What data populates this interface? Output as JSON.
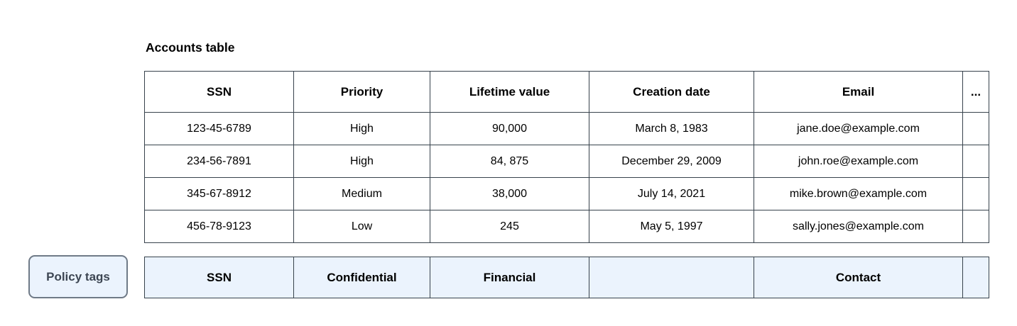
{
  "accounts_table": {
    "title": "Accounts table",
    "headers": [
      "SSN",
      "Priority",
      "Lifetime value",
      "Creation date",
      "Email",
      "..."
    ],
    "rows": [
      [
        "123-45-6789",
        "High",
        "90,000",
        "March 8, 1983",
        "jane.doe@example.com",
        ""
      ],
      [
        "234-56-7891",
        "High",
        "84, 875",
        "December 29, 2009",
        "john.roe@example.com",
        ""
      ],
      [
        "345-67-8912",
        "Medium",
        "38,000",
        "July 14, 2021",
        "mike.brown@example.com",
        ""
      ],
      [
        "456-78-9123",
        "Low",
        "245",
        "May 5, 1997",
        "sally.jones@example.com",
        ""
      ]
    ]
  },
  "policy_tags": {
    "badge_label": "Policy tags",
    "tags": [
      "SSN",
      "Confidential",
      "Financial",
      "",
      "Contact",
      ""
    ]
  },
  "colors": {
    "table_border": "#37424c",
    "policy_cell_fill": "#ebf3fd",
    "badge_fill": "#ebf3fd",
    "badge_border": "#6f7a87",
    "badge_text": "#3d4653",
    "body_text": "#000000",
    "background": "#ffffff"
  }
}
